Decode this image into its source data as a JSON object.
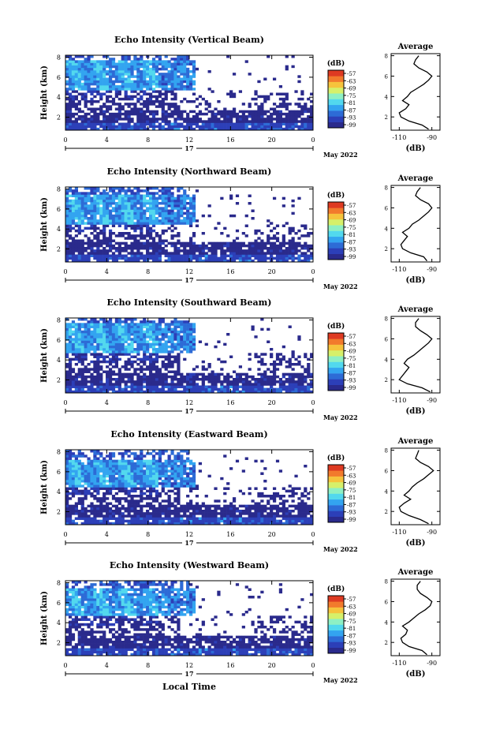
{
  "colors": {
    "colormap": [
      "#2a2a8c",
      "#2c3fb8",
      "#2d6bd6",
      "#33a4f0",
      "#52d8ee",
      "#8ef0c4",
      "#d6f06a",
      "#f6c33c",
      "#f27a2c",
      "#de3a22"
    ],
    "outline": "#000000"
  },
  "date_label": "May 2022",
  "day_label": "17",
  "xlabel_bottom": "Local Time",
  "colorbar_unit": "(dB)",
  "colorbar_ticks": [
    "-57",
    "-63",
    "-69",
    "-75",
    "-81",
    "-87",
    "-93",
    "-99"
  ],
  "avg_title": "Average",
  "avg_xlabel": "(dB)",
  "chart_data": [
    {
      "type": "heatmap",
      "title": "Echo Intensity (Vertical Beam)",
      "ylabel": "Height (km)",
      "x_ticks": [
        "0",
        "4",
        "8",
        "12",
        "16",
        "20",
        "0"
      ],
      "y_ticks": [
        "8",
        "6",
        "4",
        "2"
      ],
      "xlim": [
        0,
        24
      ],
      "ylim": [
        0.7,
        8.2
      ],
      "value_range_db": [
        -99,
        -57
      ],
      "seed": 11,
      "high_band_km": [
        4.8,
        7.6
      ],
      "average_profile": {
        "title": "Average",
        "xlabel": "(dB)",
        "x_ticks": [
          "-110",
          "-90"
        ],
        "y_ticks": [
          "8",
          "6",
          "4",
          "2"
        ],
        "xlim": [
          -115,
          -85
        ],
        "ylim": [
          0.7,
          8.2
        ],
        "height_km": [
          0.8,
          1.2,
          1.6,
          2.0,
          2.4,
          2.8,
          3.2,
          3.6,
          4.0,
          4.4,
          4.8,
          5.2,
          5.6,
          6.0,
          6.4,
          6.8,
          7.2,
          7.6,
          8.0
        ],
        "values_db": [
          -92,
          -96,
          -104,
          -109,
          -110,
          -106,
          -104,
          -108,
          -105,
          -103,
          -99,
          -95,
          -92,
          -90,
          -93,
          -98,
          -101,
          -100,
          -98
        ]
      }
    },
    {
      "type": "heatmap",
      "title": "Echo Intensity (Northward Beam)",
      "ylabel": "Height (km)",
      "x_ticks": [
        "0",
        "4",
        "8",
        "12",
        "16",
        "20",
        "0"
      ],
      "y_ticks": [
        "8",
        "6",
        "4",
        "2"
      ],
      "xlim": [
        0,
        24
      ],
      "ylim": [
        0.7,
        8.2
      ],
      "value_range_db": [
        -99,
        -57
      ],
      "seed": 23,
      "high_band_km": [
        4.5,
        7.5
      ],
      "average_profile": {
        "title": "Average",
        "xlabel": "(dB)",
        "x_ticks": [
          "-110",
          "-90"
        ],
        "y_ticks": [
          "8",
          "6",
          "4",
          "2"
        ],
        "xlim": [
          -115,
          -85
        ],
        "ylim": [
          0.7,
          8.2
        ],
        "height_km": [
          0.8,
          1.2,
          1.6,
          2.0,
          2.4,
          2.8,
          3.2,
          3.6,
          4.0,
          4.4,
          4.8,
          5.2,
          5.6,
          6.0,
          6.4,
          6.8,
          7.2,
          7.6,
          8.0
        ],
        "values_db": [
          -93,
          -95,
          -103,
          -108,
          -109,
          -107,
          -105,
          -108,
          -104,
          -102,
          -98,
          -95,
          -92,
          -90,
          -92,
          -97,
          -100,
          -99,
          -97
        ]
      }
    },
    {
      "type": "heatmap",
      "title": "Echo Intensity (Southward Beam)",
      "ylabel": "Height (km)",
      "x_ticks": [
        "0",
        "4",
        "8",
        "12",
        "16",
        "20",
        "0"
      ],
      "y_ticks": [
        "8",
        "6",
        "4",
        "2"
      ],
      "xlim": [
        0,
        24
      ],
      "ylim": [
        0.7,
        8.2
      ],
      "value_range_db": [
        -99,
        -57
      ],
      "seed": 37,
      "high_band_km": [
        4.6,
        7.6
      ],
      "average_profile": {
        "title": "Average",
        "xlabel": "(dB)",
        "x_ticks": [
          "-110",
          "-90"
        ],
        "y_ticks": [
          "8",
          "6",
          "4",
          "2"
        ],
        "xlim": [
          -115,
          -85
        ],
        "ylim": [
          0.7,
          8.2
        ],
        "height_km": [
          0.8,
          1.2,
          1.6,
          2.0,
          2.4,
          2.8,
          3.2,
          3.6,
          4.0,
          4.4,
          4.8,
          5.2,
          5.6,
          6.0,
          6.4,
          6.8,
          7.2,
          7.6,
          8.0
        ],
        "values_db": [
          -91,
          -96,
          -105,
          -110,
          -108,
          -106,
          -104,
          -107,
          -105,
          -101,
          -98,
          -95,
          -92,
          -90,
          -93,
          -97,
          -100,
          -100,
          -98
        ]
      }
    },
    {
      "type": "heatmap",
      "title": "Echo Intensity (Eastward Beam)",
      "ylabel": "Height (km)",
      "x_ticks": [
        "0",
        "4",
        "8",
        "12",
        "16",
        "20",
        "0"
      ],
      "y_ticks": [
        "8",
        "6",
        "4",
        "2"
      ],
      "xlim": [
        0,
        24
      ],
      "ylim": [
        0.7,
        8.2
      ],
      "value_range_db": [
        -99,
        -57
      ],
      "seed": 53,
      "high_band_km": [
        4.5,
        7.3
      ],
      "average_profile": {
        "title": "Average",
        "xlabel": "(dB)",
        "x_ticks": [
          "-110",
          "-90"
        ],
        "y_ticks": [
          "8",
          "6",
          "4",
          "2"
        ],
        "xlim": [
          -115,
          -85
        ],
        "ylim": [
          0.7,
          8.2
        ],
        "height_km": [
          0.8,
          1.2,
          1.6,
          2.0,
          2.4,
          2.8,
          3.2,
          3.6,
          4.0,
          4.4,
          4.8,
          5.2,
          5.6,
          6.0,
          6.4,
          6.8,
          7.2,
          7.6,
          8.0
        ],
        "values_db": [
          -92,
          -97,
          -104,
          -109,
          -110,
          -107,
          -103,
          -107,
          -104,
          -102,
          -99,
          -95,
          -92,
          -89,
          -92,
          -97,
          -100,
          -99,
          -98
        ]
      }
    },
    {
      "type": "heatmap",
      "title": "Echo Intensity (Westward Beam)",
      "ylabel": "Height (km)",
      "x_ticks": [
        "0",
        "4",
        "8",
        "12",
        "16",
        "20",
        "0"
      ],
      "y_ticks": [
        "8",
        "6",
        "4",
        "2"
      ],
      "xlim": [
        0,
        24
      ],
      "ylim": [
        0.7,
        8.2
      ],
      "value_range_db": [
        -99,
        -57
      ],
      "seed": 71,
      "high_band_km": [
        4.7,
        7.5
      ],
      "average_profile": {
        "title": "Average",
        "xlabel": "(dB)",
        "x_ticks": [
          "-110",
          "-90"
        ],
        "y_ticks": [
          "8",
          "6",
          "4",
          "2"
        ],
        "xlim": [
          -115,
          -85
        ],
        "ylim": [
          0.7,
          8.2
        ],
        "height_km": [
          0.8,
          1.2,
          1.6,
          2.0,
          2.4,
          2.8,
          3.2,
          3.6,
          4.0,
          4.4,
          4.8,
          5.2,
          5.6,
          6.0,
          6.4,
          6.8,
          7.2,
          7.6,
          8.0
        ],
        "values_db": [
          -93,
          -96,
          -104,
          -108,
          -109,
          -106,
          -105,
          -108,
          -104,
          -101,
          -98,
          -94,
          -91,
          -90,
          -93,
          -97,
          -99,
          -99,
          -97
        ]
      }
    }
  ]
}
